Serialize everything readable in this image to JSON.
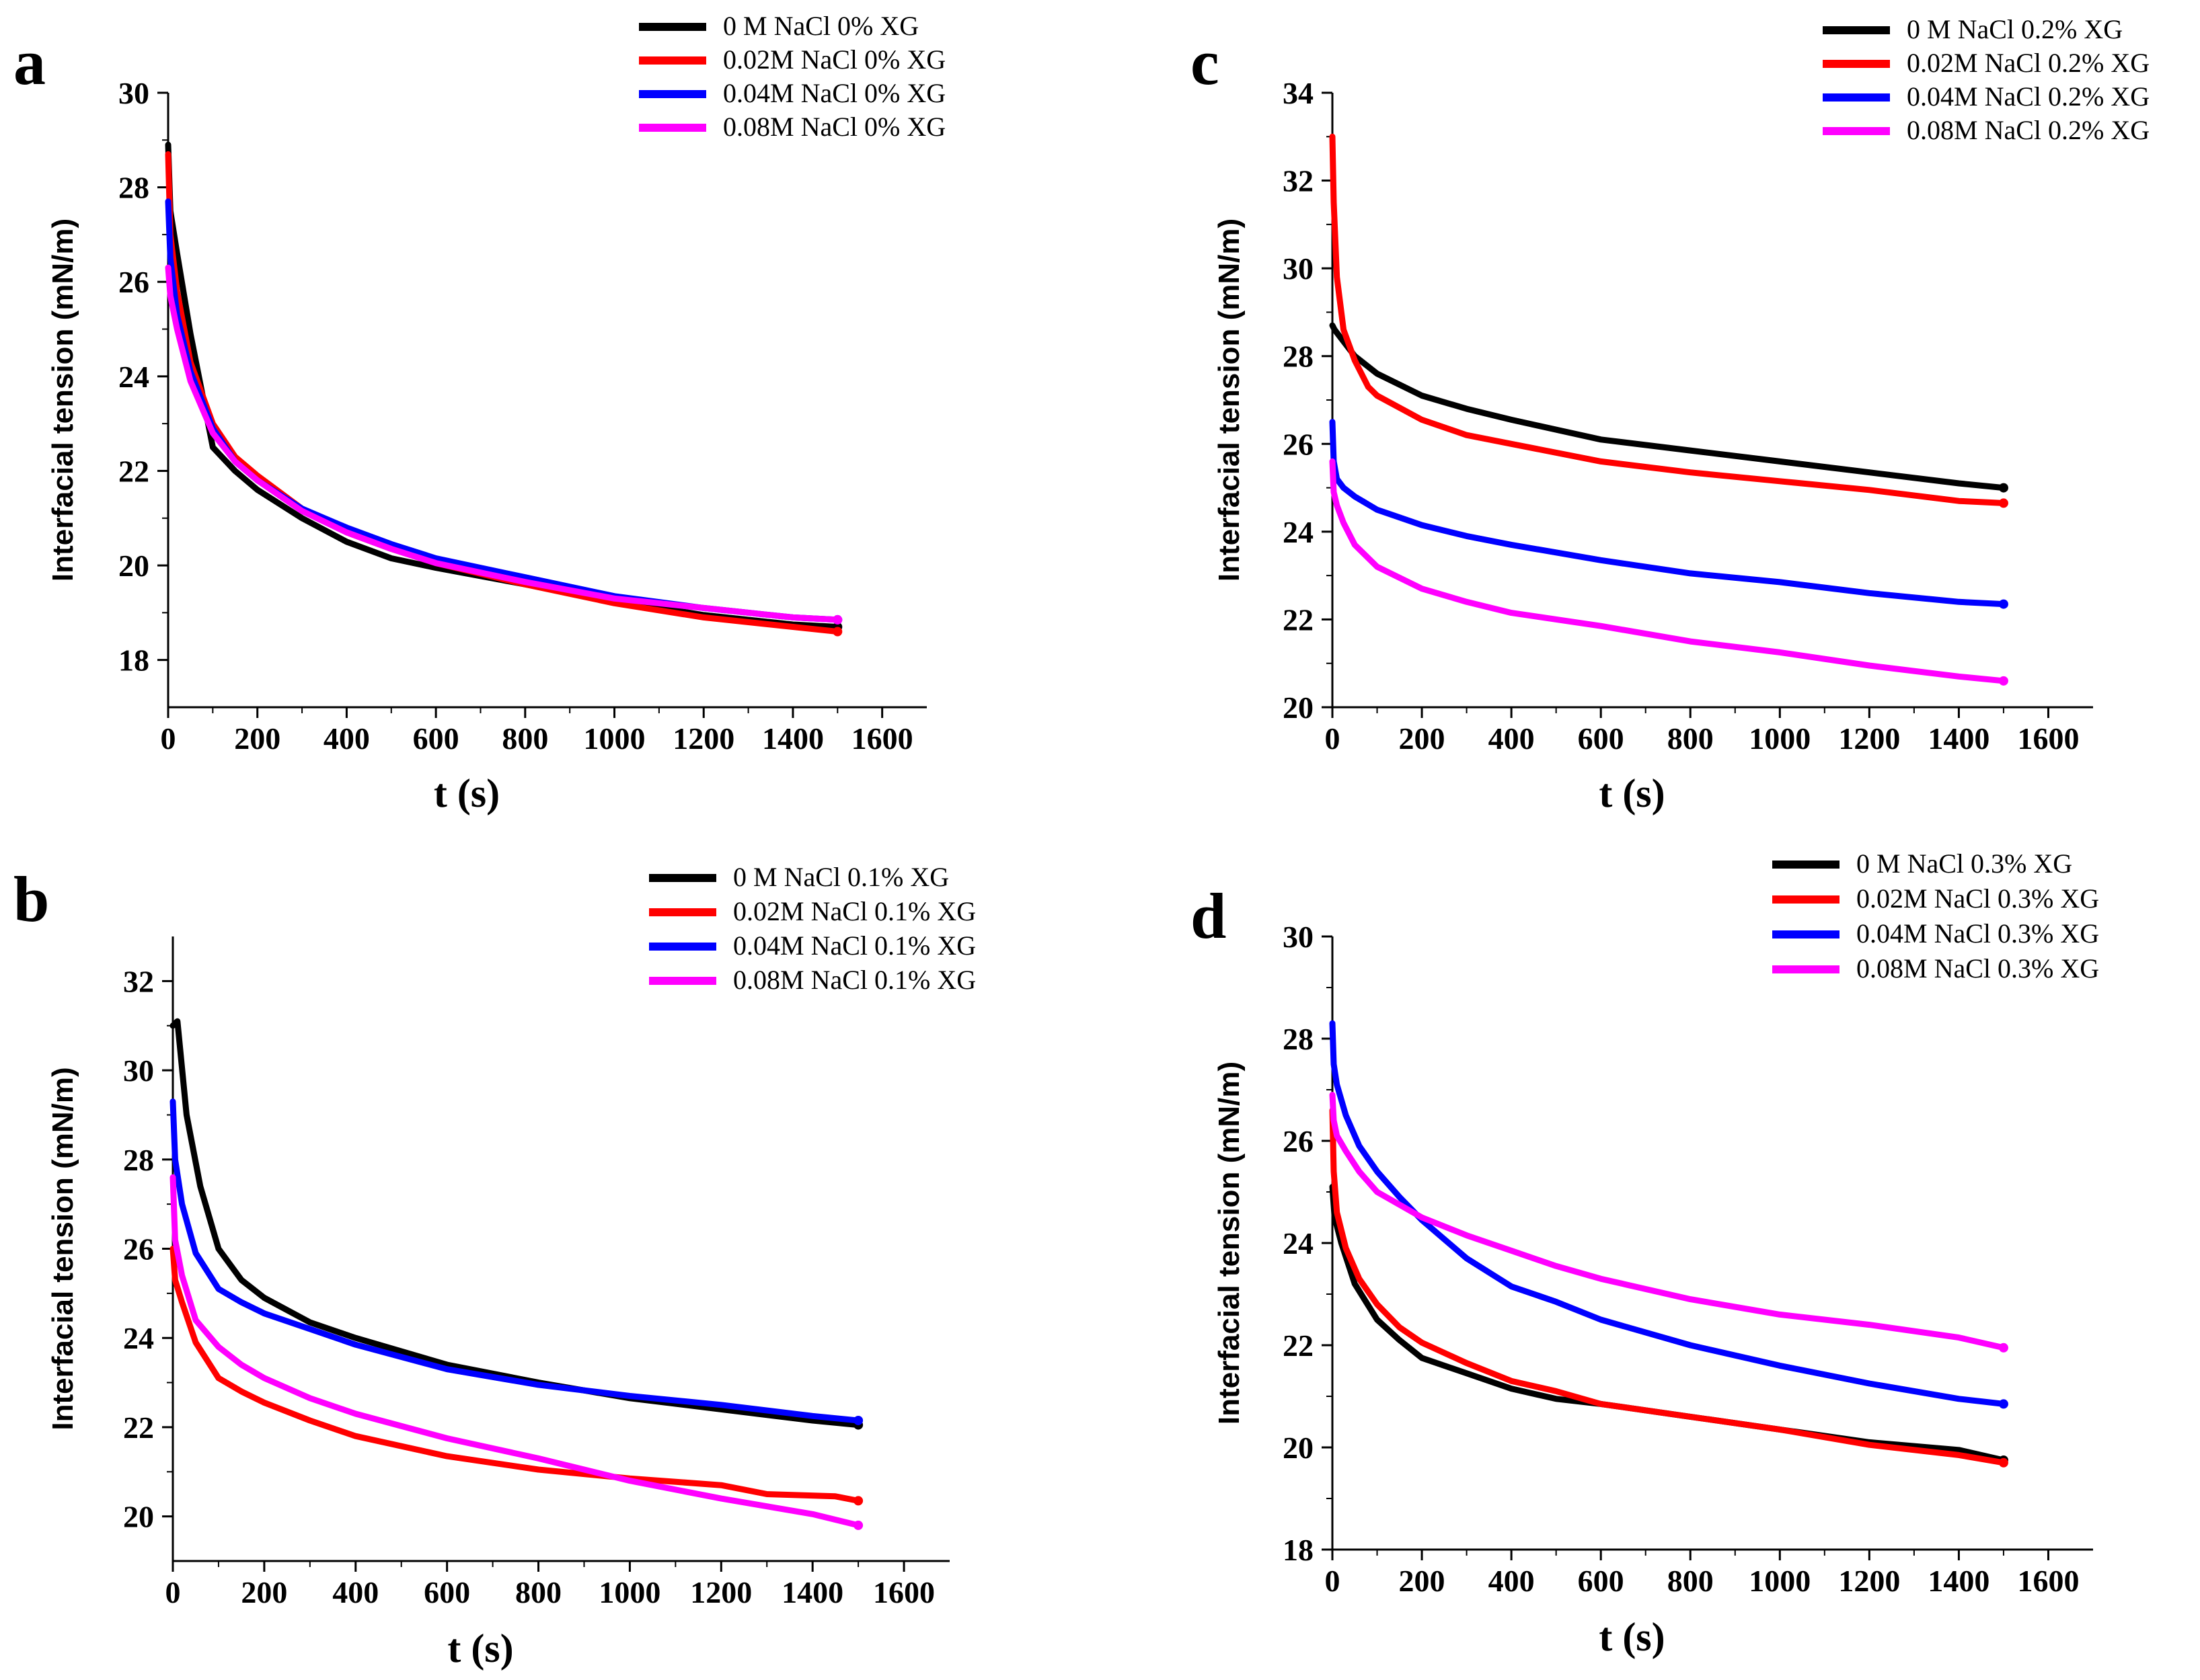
{
  "chart_data": [
    {
      "panel": "a",
      "type": "line",
      "xlabel": "t (s)",
      "ylabel": "Interfacial tension  (mN/m)",
      "xlim": [
        0,
        1700
      ],
      "ylim": [
        17,
        30
      ],
      "xticks": [
        0,
        200,
        400,
        600,
        800,
        1000,
        1200,
        1400,
        1600
      ],
      "yticks": [
        18,
        20,
        22,
        24,
        26,
        28,
        30
      ],
      "legend_position": "top-right",
      "series": [
        {
          "name": "0     M NaCl 0% XG",
          "color": "#000000",
          "x": [
            0,
            5,
            20,
            50,
            100,
            150,
            200,
            300,
            400,
            500,
            600,
            800,
            1000,
            1200,
            1400,
            1500
          ],
          "y": [
            28.9,
            27.5,
            26.6,
            24.9,
            22.5,
            22.0,
            21.6,
            21.0,
            20.5,
            20.15,
            19.95,
            19.6,
            19.25,
            18.95,
            18.75,
            18.7
          ]
        },
        {
          "name": "0.02M NaCl 0% XG",
          "color": "#ff0000",
          "x": [
            0,
            5,
            20,
            50,
            100,
            150,
            200,
            300,
            400,
            500,
            600,
            800,
            1000,
            1200,
            1400,
            1500
          ],
          "y": [
            28.7,
            27.0,
            25.8,
            24.3,
            23.0,
            22.3,
            21.9,
            21.2,
            20.7,
            20.35,
            20.05,
            19.6,
            19.2,
            18.9,
            18.7,
            18.6
          ]
        },
        {
          "name": "0.04M NaCl 0% XG",
          "color": "#0000ff",
          "x": [
            0,
            5,
            20,
            50,
            100,
            150,
            200,
            300,
            400,
            500,
            600,
            800,
            1000,
            1200,
            1400,
            1500
          ],
          "y": [
            27.7,
            26.5,
            25.3,
            24.1,
            22.9,
            22.2,
            21.8,
            21.2,
            20.8,
            20.45,
            20.15,
            19.75,
            19.35,
            19.1,
            18.9,
            18.85
          ]
        },
        {
          "name": "0.08M NaCl 0% XG",
          "color": "#ff00ff",
          "x": [
            0,
            5,
            20,
            50,
            100,
            150,
            200,
            300,
            400,
            500,
            600,
            800,
            1000,
            1200,
            1400,
            1500
          ],
          "y": [
            26.3,
            25.7,
            25.0,
            23.9,
            22.8,
            22.2,
            21.8,
            21.15,
            20.7,
            20.35,
            20.05,
            19.65,
            19.3,
            19.1,
            18.9,
            18.85
          ]
        }
      ]
    },
    {
      "panel": "b",
      "type": "line",
      "xlabel": "t  (s)",
      "ylabel": "Interfacial tension  (mN/m)",
      "xlim": [
        0,
        1700
      ],
      "ylim": [
        19,
        33
      ],
      "xticks": [
        0,
        200,
        400,
        600,
        800,
        1000,
        1200,
        1400,
        1600
      ],
      "yticks": [
        20,
        22,
        24,
        26,
        28,
        30,
        32
      ],
      "legend_position": "top-right",
      "series": [
        {
          "name": "0     M NaCl 0.1% XG",
          "color": "#000000",
          "x": [
            0,
            10,
            30,
            60,
            100,
            150,
            200,
            300,
            400,
            600,
            800,
            1000,
            1200,
            1400,
            1500
          ],
          "y": [
            31.0,
            31.1,
            29.0,
            27.4,
            26.0,
            25.3,
            24.9,
            24.35,
            24.0,
            23.4,
            23.0,
            22.65,
            22.4,
            22.15,
            22.05
          ]
        },
        {
          "name": "0.02M NaCl 0.1% XG",
          "color": "#ff0000",
          "x": [
            0,
            5,
            20,
            50,
            100,
            150,
            200,
            300,
            400,
            600,
            800,
            1000,
            1200,
            1300,
            1450,
            1500
          ],
          "y": [
            26.0,
            25.3,
            24.8,
            23.9,
            23.1,
            22.8,
            22.55,
            22.15,
            21.8,
            21.35,
            21.05,
            20.85,
            20.7,
            20.5,
            20.45,
            20.35
          ]
        },
        {
          "name": "0.04M NaCl 0.1% XG",
          "color": "#0000ff",
          "x": [
            0,
            5,
            20,
            50,
            100,
            150,
            200,
            300,
            400,
            600,
            800,
            1000,
            1200,
            1400,
            1500
          ],
          "y": [
            29.3,
            28.0,
            27.0,
            25.9,
            25.1,
            24.8,
            24.55,
            24.2,
            23.85,
            23.3,
            22.95,
            22.7,
            22.5,
            22.25,
            22.15
          ]
        },
        {
          "name": "0.08M NaCl 0.1% XG",
          "color": "#ff00ff",
          "x": [
            0,
            5,
            20,
            50,
            100,
            150,
            200,
            300,
            400,
            600,
            800,
            1000,
            1200,
            1400,
            1500
          ],
          "y": [
            27.6,
            26.2,
            25.4,
            24.4,
            23.8,
            23.4,
            23.1,
            22.65,
            22.3,
            21.75,
            21.3,
            20.8,
            20.4,
            20.05,
            19.8
          ]
        }
      ]
    },
    {
      "panel": "c",
      "type": "line",
      "xlabel": "t (s)",
      "ylabel": "Interfacial tension  (mN/m)",
      "xlim": [
        0,
        1700
      ],
      "ylim": [
        20,
        34
      ],
      "xticks": [
        0,
        200,
        400,
        600,
        800,
        1000,
        1200,
        1400,
        1600
      ],
      "yticks": [
        20,
        22,
        24,
        26,
        28,
        30,
        32,
        34
      ],
      "legend_position": "top-right",
      "series": [
        {
          "name": "0     M NaCl 0.2% XG",
          "color": "#000000",
          "x": [
            0,
            5,
            20,
            50,
            100,
            200,
            300,
            400,
            600,
            800,
            1000,
            1200,
            1400,
            1500
          ],
          "y": [
            28.7,
            28.6,
            28.4,
            28.0,
            27.6,
            27.1,
            26.8,
            26.55,
            26.1,
            25.85,
            25.6,
            25.35,
            25.1,
            25.0
          ]
        },
        {
          "name": "0.02M NaCl 0.2% XG",
          "color": "#ff0000",
          "x": [
            0,
            3,
            10,
            25,
            50,
            80,
            100,
            200,
            300,
            400,
            600,
            800,
            1000,
            1200,
            1400,
            1500
          ],
          "y": [
            33.0,
            31.5,
            29.8,
            28.6,
            27.9,
            27.3,
            27.1,
            26.55,
            26.2,
            26.0,
            25.6,
            25.35,
            25.15,
            24.95,
            24.7,
            24.65
          ]
        },
        {
          "name": "0.04M NaCl 0.2% XG",
          "color": "#0000ff",
          "x": [
            0,
            3,
            10,
            25,
            50,
            100,
            200,
            300,
            400,
            600,
            800,
            1000,
            1200,
            1400,
            1500
          ],
          "y": [
            26.5,
            25.6,
            25.2,
            25.0,
            24.8,
            24.5,
            24.15,
            23.9,
            23.7,
            23.35,
            23.05,
            22.85,
            22.6,
            22.4,
            22.35
          ]
        },
        {
          "name": "0.08M NaCl 0.2% XG",
          "color": "#ff00ff",
          "x": [
            0,
            3,
            10,
            25,
            50,
            100,
            200,
            300,
            400,
            600,
            800,
            1000,
            1200,
            1400,
            1500
          ],
          "y": [
            25.6,
            24.9,
            24.6,
            24.2,
            23.7,
            23.2,
            22.7,
            22.4,
            22.15,
            21.85,
            21.5,
            21.25,
            20.95,
            20.7,
            20.6
          ]
        }
      ]
    },
    {
      "panel": "d",
      "type": "line",
      "xlabel": "t (s)",
      "ylabel": "Interfacial tension  (mN/m)",
      "xlim": [
        0,
        1700
      ],
      "ylim": [
        18,
        30
      ],
      "xticks": [
        0,
        200,
        400,
        600,
        800,
        1000,
        1200,
        1400,
        1600
      ],
      "yticks": [
        18,
        20,
        22,
        24,
        26,
        28,
        30
      ],
      "legend_position": "top-right",
      "series": [
        {
          "name": "0     M NaCl 0.3% XG",
          "color": "#000000",
          "x": [
            0,
            5,
            20,
            50,
            100,
            150,
            200,
            300,
            400,
            500,
            600,
            800,
            1000,
            1200,
            1400,
            1500
          ],
          "y": [
            25.1,
            24.5,
            24.0,
            23.2,
            22.5,
            22.1,
            21.75,
            21.45,
            21.15,
            20.95,
            20.85,
            20.6,
            20.35,
            20.1,
            19.95,
            19.75
          ]
        },
        {
          "name": "0.02M NaCl 0.3% XG",
          "color": "#ff0000",
          "x": [
            0,
            3,
            10,
            30,
            60,
            100,
            150,
            200,
            300,
            400,
            500,
            600,
            800,
            1000,
            1200,
            1400,
            1500
          ],
          "y": [
            26.6,
            25.4,
            24.6,
            23.9,
            23.3,
            22.8,
            22.35,
            22.05,
            21.65,
            21.3,
            21.1,
            20.85,
            20.6,
            20.35,
            20.05,
            19.85,
            19.7
          ]
        },
        {
          "name": "0.04M NaCl 0.3% XG",
          "color": "#0000ff",
          "x": [
            0,
            3,
            10,
            30,
            60,
            100,
            150,
            200,
            300,
            400,
            500,
            600,
            800,
            1000,
            1200,
            1400,
            1500
          ],
          "y": [
            28.3,
            27.5,
            27.1,
            26.5,
            25.9,
            25.4,
            24.9,
            24.45,
            23.7,
            23.15,
            22.85,
            22.5,
            22.0,
            21.6,
            21.25,
            20.95,
            20.85
          ]
        },
        {
          "name": "0.08M NaCl 0.3% XG",
          "color": "#ff00ff",
          "x": [
            0,
            3,
            10,
            30,
            60,
            100,
            150,
            200,
            300,
            400,
            500,
            600,
            800,
            1000,
            1200,
            1400,
            1500
          ],
          "y": [
            26.9,
            26.4,
            26.1,
            25.8,
            25.4,
            25.0,
            24.75,
            24.5,
            24.15,
            23.85,
            23.55,
            23.3,
            22.9,
            22.6,
            22.4,
            22.15,
            21.95
          ]
        }
      ]
    }
  ]
}
